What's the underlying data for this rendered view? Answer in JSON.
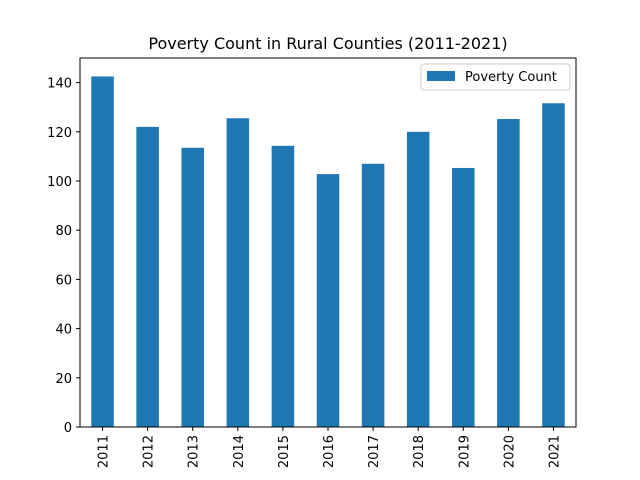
{
  "chart_data": {
    "type": "bar",
    "title": "Poverty Count in Rural Counties (2011-2021)",
    "xlabel": "",
    "ylabel": "",
    "categories": [
      "2011",
      "2012",
      "2013",
      "2014",
      "2015",
      "2016",
      "2017",
      "2018",
      "2019",
      "2020",
      "2021"
    ],
    "series": [
      {
        "name": "Poverty Count",
        "values": [
          142.5,
          122,
          113.5,
          125.5,
          114.3,
          102.8,
          107,
          120,
          105.3,
          125.2,
          131.6
        ],
        "color": "#1f77b4"
      }
    ],
    "ylim": [
      0,
      150
    ],
    "yticks": [
      0,
      20,
      40,
      60,
      80,
      100,
      120,
      140
    ],
    "grid": false,
    "legend_position": "top-right"
  }
}
